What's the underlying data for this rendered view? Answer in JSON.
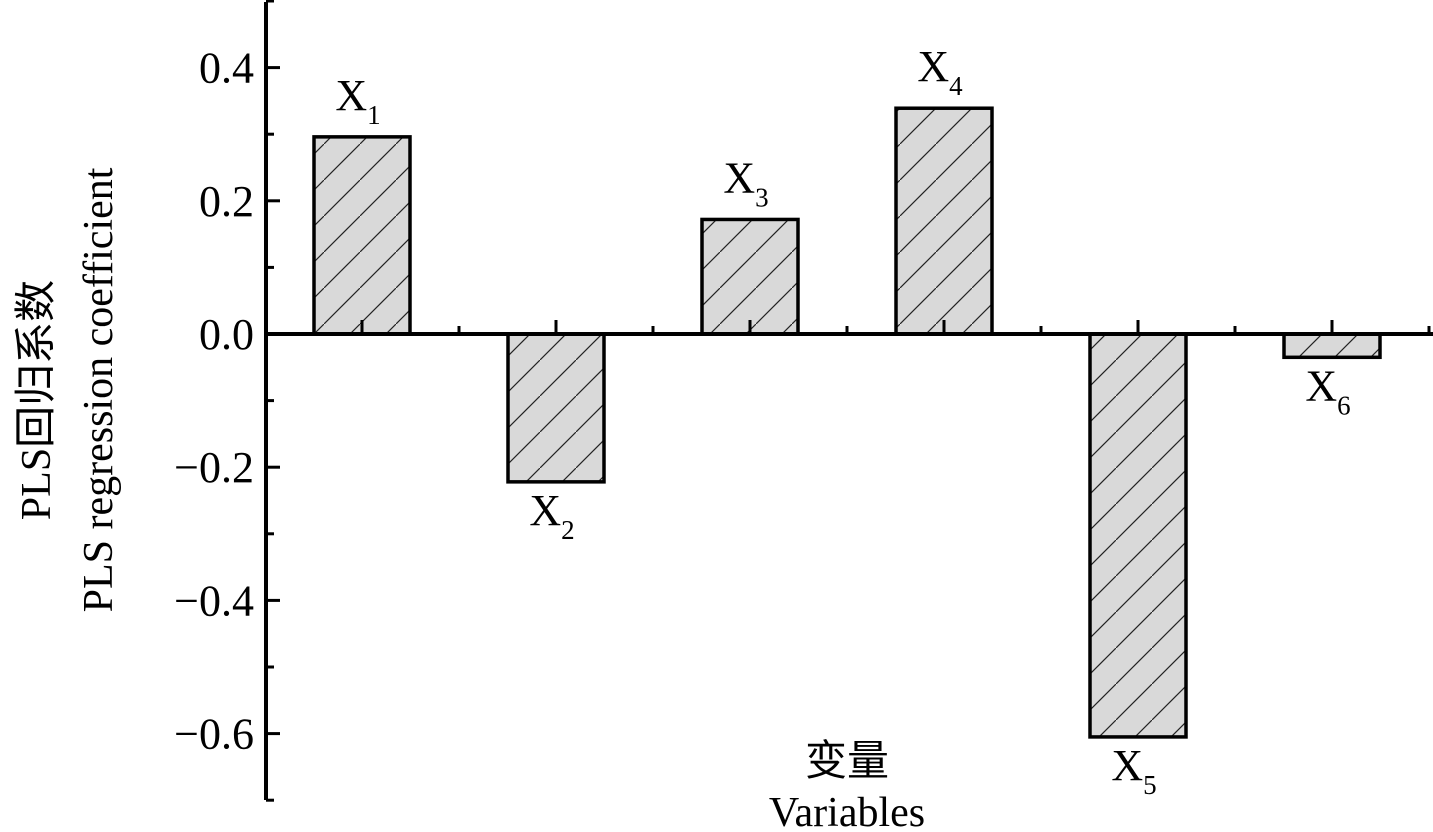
{
  "chart_data": {
    "type": "bar",
    "categories": [
      "X1",
      "X2",
      "X3",
      "X4",
      "X5",
      "X6"
    ],
    "bar_labels": [
      {
        "main": "X",
        "sub": "1"
      },
      {
        "main": "X",
        "sub": "2"
      },
      {
        "main": "X",
        "sub": "3"
      },
      {
        "main": "X",
        "sub": "4"
      },
      {
        "main": "X",
        "sub": "5"
      },
      {
        "main": "X",
        "sub": "6"
      }
    ],
    "values": [
      0.296,
      -0.222,
      0.172,
      0.339,
      -0.605,
      -0.035
    ],
    "ylabel_cn": "PLS回归系数",
    "ylabel_en": "PLS regression coefficient",
    "xlabel_cn": "变量",
    "xlabel_en": "Variables",
    "ylim": [
      -0.7,
      0.5
    ],
    "yticks": [
      -0.6,
      -0.4,
      -0.2,
      0.0,
      0.2,
      0.4
    ],
    "ytick_labels": [
      "−0.6",
      "−0.4",
      "−0.2",
      "0.0",
      "0.2",
      "0.4"
    ],
    "grid": false,
    "bar_fill": "#d9d9d9",
    "bar_stroke": "#000000",
    "bar_pattern": "diagonal-hatch"
  }
}
